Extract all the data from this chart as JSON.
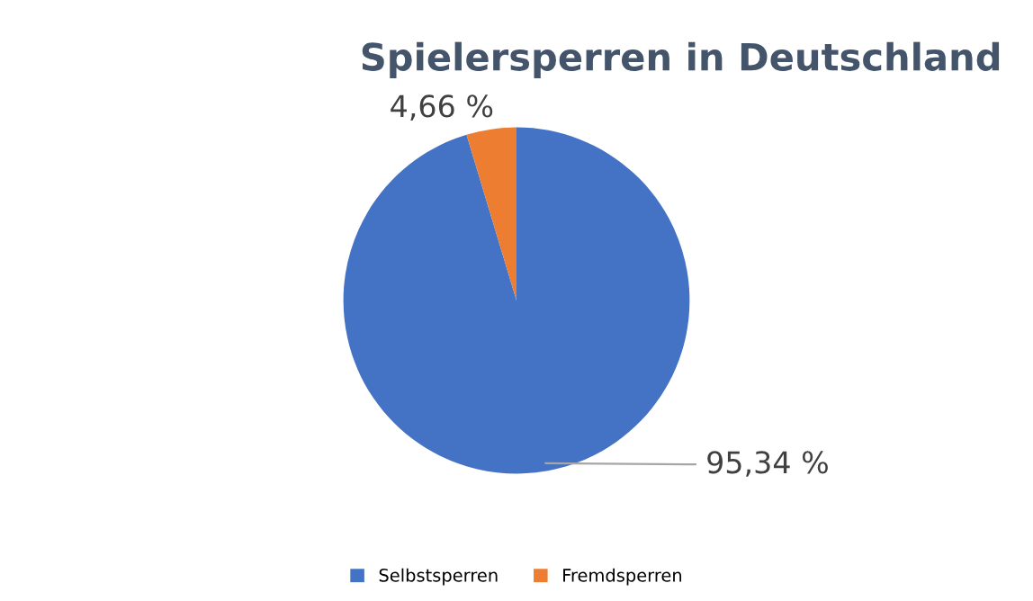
{
  "chart_data": {
    "type": "pie",
    "title": "Spielersperren in Deutschland",
    "categories": [
      "Selbstsperren",
      "Fremdsperren"
    ],
    "values": [
      95.34,
      4.66
    ],
    "value_labels": [
      "95,34 %",
      "4,66 %"
    ],
    "colors": [
      "#4472c4",
      "#ed7d31"
    ],
    "legend": "bottom"
  }
}
